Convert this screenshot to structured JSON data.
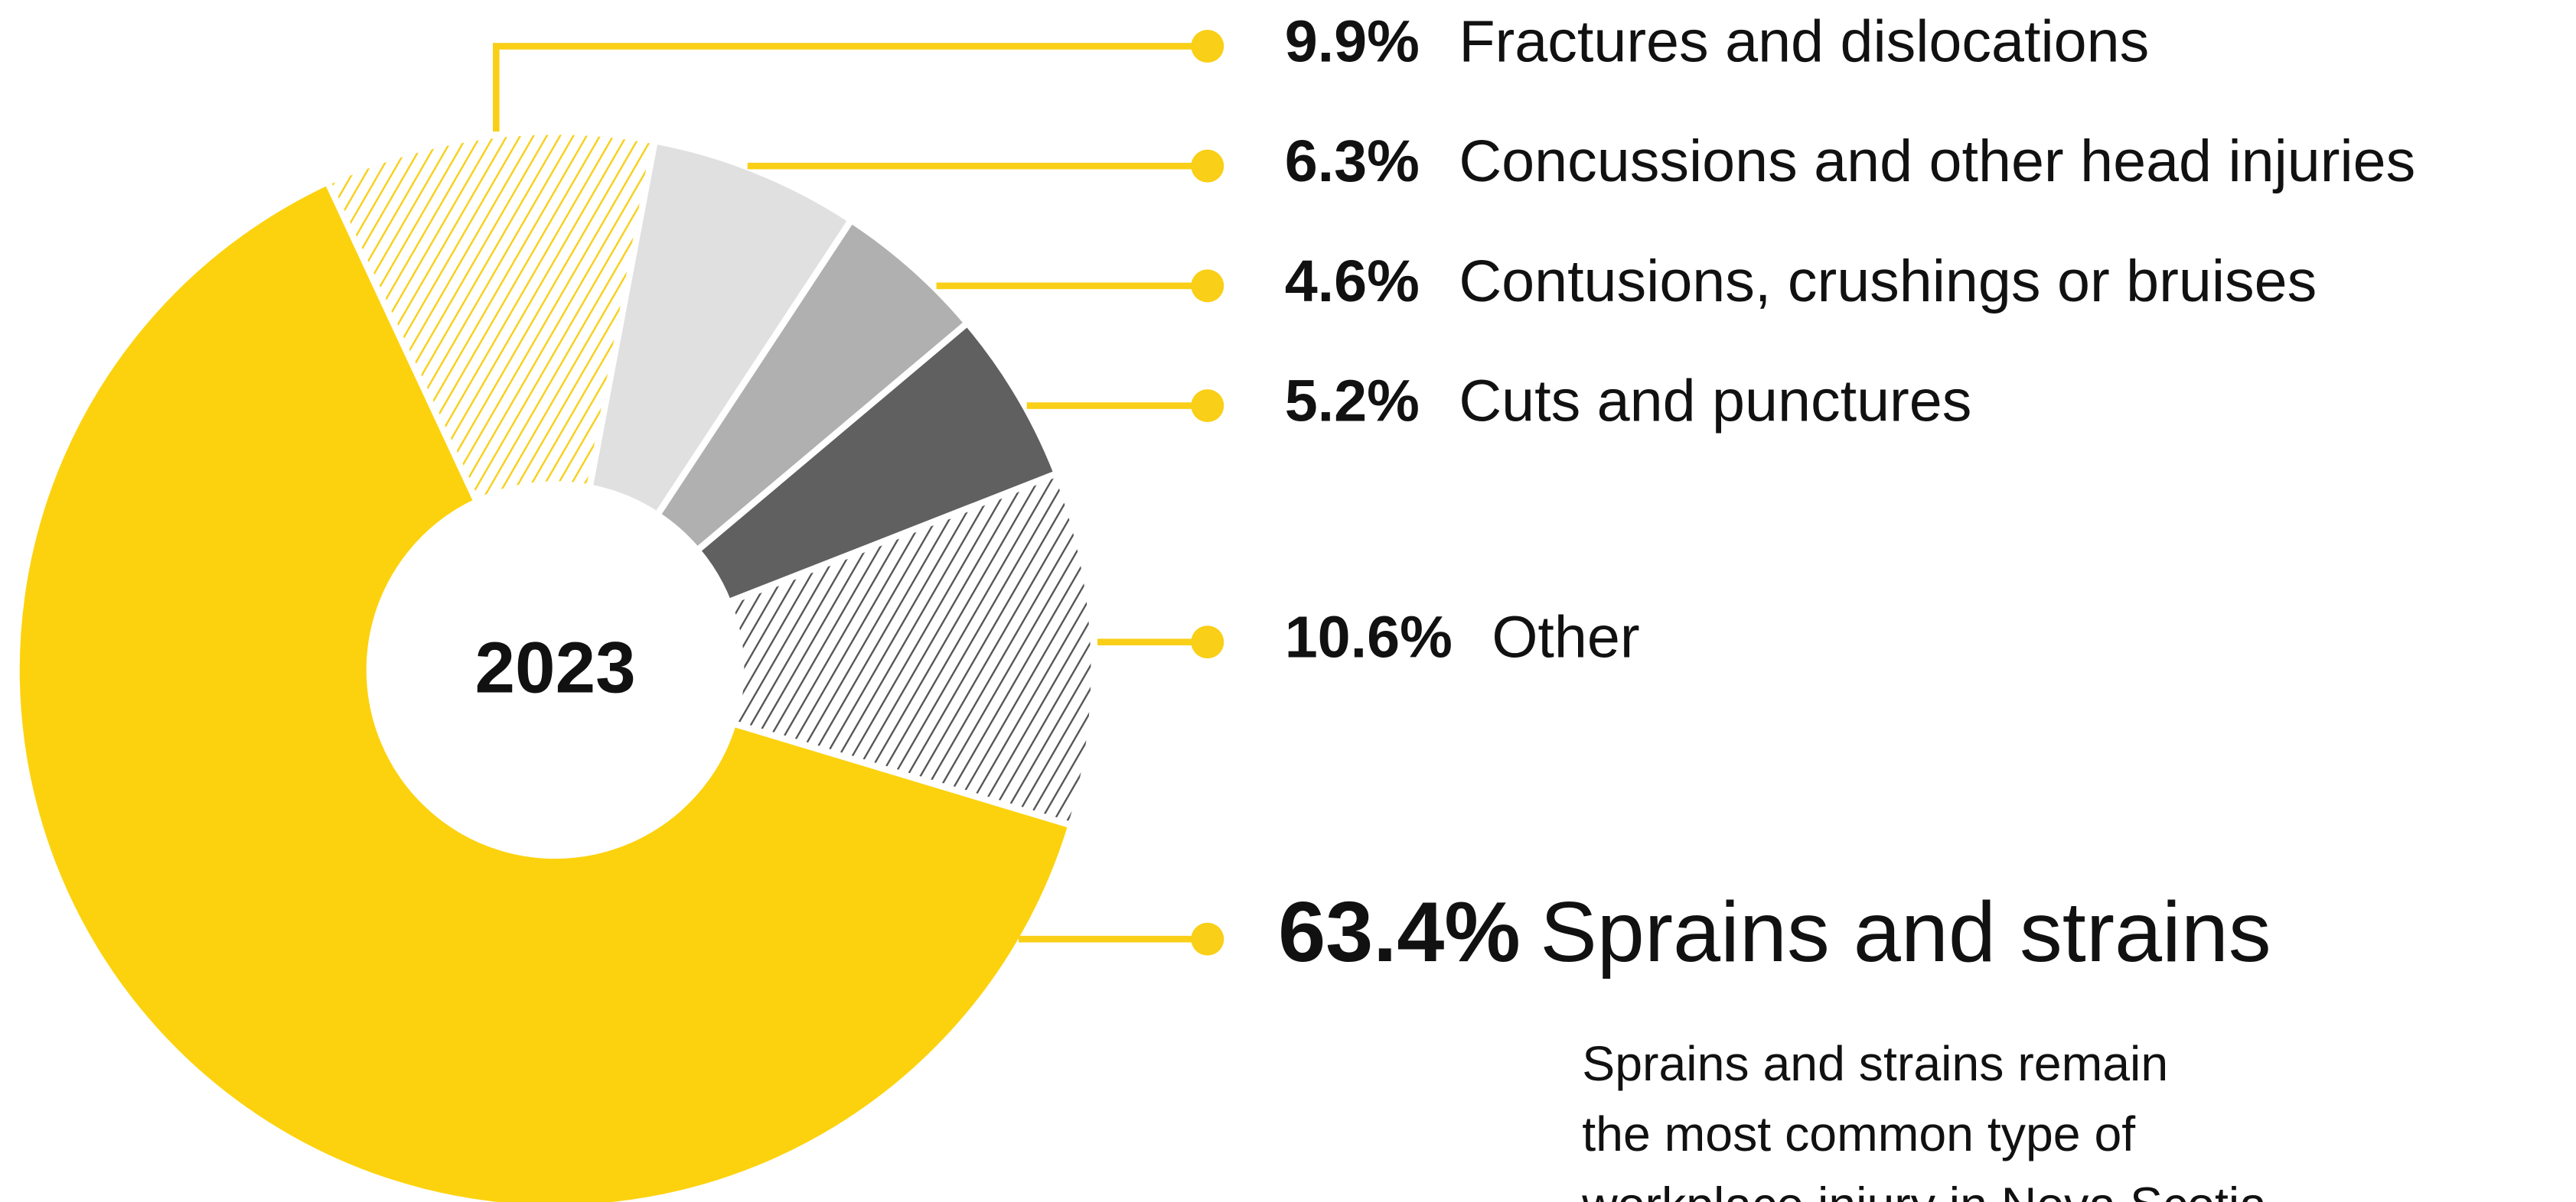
{
  "chart_data": {
    "type": "donut",
    "center_label": "2023",
    "categories": [
      "Fractures and dislocations",
      "Concussions and other head injuries",
      "Contusions, crushings or bruises",
      "Cuts and punctures",
      "Other",
      "Sprains and strains"
    ],
    "values": [
      9.9,
      6.3,
      4.6,
      5.2,
      10.6,
      63.4
    ],
    "value_labels": [
      "9.9%",
      "6.3%",
      "4.6%",
      "5.2%",
      "10.6%",
      "63.4%"
    ],
    "colors": [
      "#f9cf17",
      "#e0e0e0",
      "#b0b0b0",
      "#606060",
      "#555555",
      "#fcd20e"
    ],
    "hatched": [
      true,
      false,
      false,
      false,
      true,
      false
    ],
    "leader_color": "#f9cf17",
    "description": [
      "Sprains and strains remain",
      "the most common type of",
      "workplace injury in Nova Scotia"
    ]
  }
}
